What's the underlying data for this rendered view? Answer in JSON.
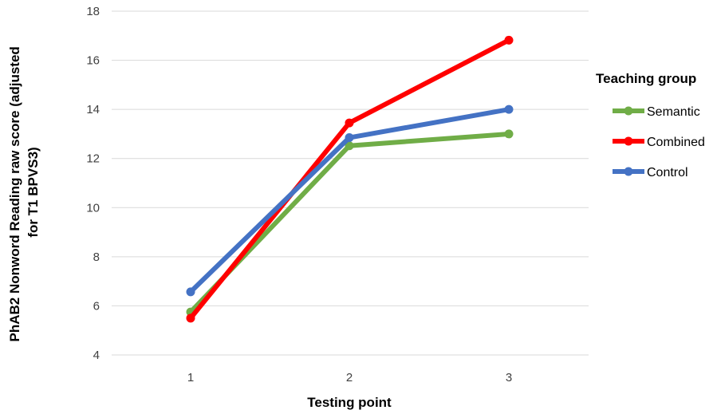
{
  "chart_data": {
    "type": "line",
    "x": [
      1,
      2,
      3
    ],
    "xlabel": "Testing point",
    "ylabel_lines": [
      "PhAB2 Nonword Reading raw score (adjusted",
      "for T1 BPVS3)"
    ],
    "ylim": [
      4,
      18
    ],
    "yticks": [
      4,
      6,
      8,
      10,
      12,
      14,
      16,
      18
    ],
    "grid": true,
    "legend": {
      "title": "Teaching group",
      "placement": "right"
    },
    "series": [
      {
        "name": "Semantic",
        "values": [
          5.75,
          12.52,
          13.0
        ],
        "color": "#70ad47"
      },
      {
        "name": "Combined",
        "values": [
          5.5,
          13.45,
          16.82
        ],
        "color": "#ff0000"
      },
      {
        "name": "Control",
        "values": [
          6.57,
          12.85,
          14.0
        ],
        "color": "#4472c4"
      }
    ]
  }
}
